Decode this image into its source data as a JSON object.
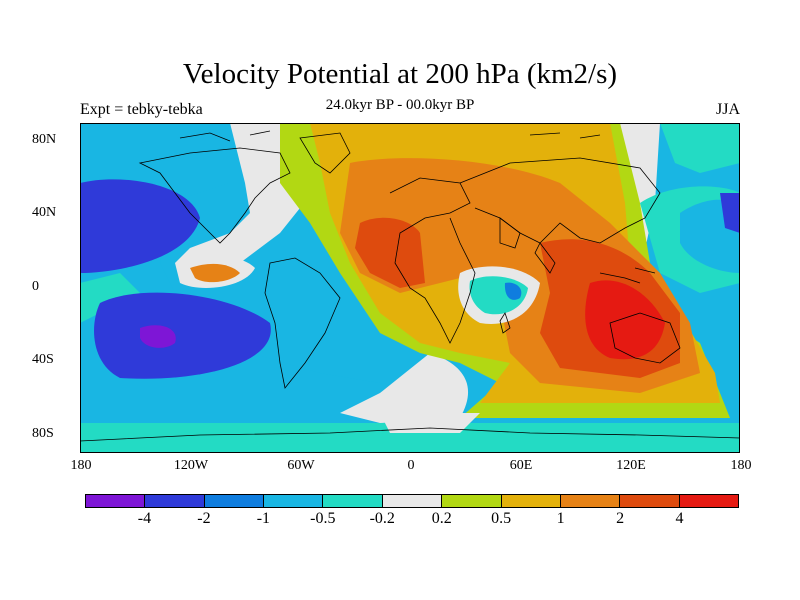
{
  "header": {
    "title": "Velocity Potential at 200 hPa (km2/s)",
    "subtitle": "24.0kyr BP - 00.0kyr BP",
    "left_label": "Expt = tebky-tebka",
    "right_label": "JJA"
  },
  "axes": {
    "lat_ticks": [
      "80N",
      "40N",
      "0",
      "40S",
      "80S"
    ],
    "lon_ticks": [
      "180",
      "120W",
      "60W",
      "0",
      "60E",
      "120E",
      "180"
    ]
  },
  "colorbar": {
    "colors": [
      "#7e16d6",
      "#2f3ad9",
      "#0f7ddf",
      "#19b6e3",
      "#23dbc4",
      "#e8e8e8",
      "#b2d813",
      "#e3b10b",
      "#e68216",
      "#de4b0e",
      "#e51a12"
    ],
    "labels": [
      "-4",
      "-2",
      "-1",
      "-0.5",
      "-0.2",
      "0.2",
      "0.5",
      "1",
      "2",
      "4"
    ]
  }
}
